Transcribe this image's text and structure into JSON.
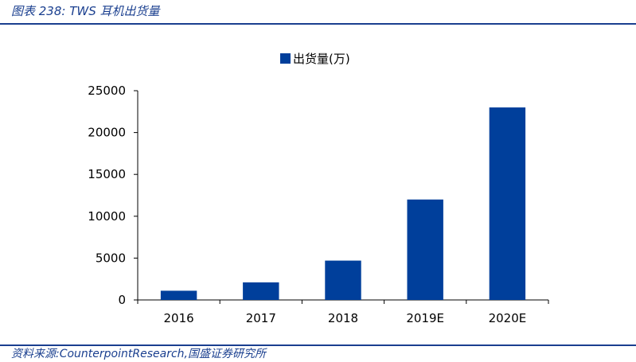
{
  "caption": "图表 238:  TWS 耳机出货量",
  "source": "资料来源:CounterpointResearch,国盛证券研究所",
  "colors": {
    "bar": "#003f9b",
    "header": "#1a3f8f"
  },
  "chart_data": {
    "type": "bar",
    "categories": [
      "2016",
      "2017",
      "2018",
      "2019E",
      "2020E"
    ],
    "series": [
      {
        "name": "出货量(万)",
        "values": [
          1100,
          2100,
          4700,
          12000,
          23000
        ]
      }
    ],
    "ylim": [
      0,
      25000
    ],
    "yticks": [
      0,
      5000,
      10000,
      15000,
      20000,
      25000
    ],
    "legend_position": "top-center",
    "grid": false
  }
}
